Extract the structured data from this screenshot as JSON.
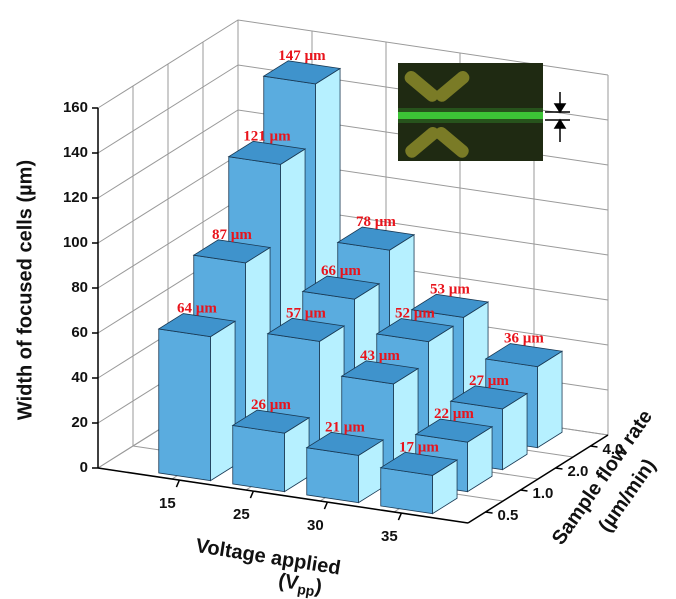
{
  "chart_data": {
    "type": "bar3d",
    "y_label": "Width of focused cells (µm)",
    "x_label": "Voltage applied",
    "x_label_unit": [
      "(V",
      "pp",
      ")"
    ],
    "z_label": [
      "Sample flow rate",
      "(µm/min)"
    ],
    "categories": [
      "15",
      "25",
      "30",
      "35"
    ],
    "series": [
      {
        "name": "0.5",
        "color": "#5aacdf",
        "values": [
          64,
          26,
          21,
          17
        ],
        "value_labels": [
          "64 µm",
          "26 µm",
          "21 µm",
          "17 µm"
        ]
      },
      {
        "name": "1.0",
        "color": "#5aacdf",
        "values": [
          87,
          57,
          43,
          22
        ],
        "value_labels": [
          "87 µm",
          "57 µm",
          "43 µm",
          "22 µm"
        ]
      },
      {
        "name": "2.0",
        "color": "#5aacdf",
        "values": [
          121,
          66,
          52,
          27
        ],
        "value_labels": [
          "121 µm",
          "66 µm",
          "52 µm",
          "27 µm"
        ]
      },
      {
        "name": "4.0",
        "color": "#5aacdf",
        "values": [
          147,
          78,
          53,
          36
        ],
        "value_labels": [
          "147 µm",
          "78 µm",
          "53 µm",
          "36 µm"
        ]
      }
    ],
    "side_color": "#b6f0ff",
    "top_color": "#3f93cc",
    "value_label_color": "#e8141c",
    "ylim": [
      0,
      160
    ],
    "yticks": [
      0,
      20,
      40,
      60,
      80,
      100,
      120,
      140,
      160
    ],
    "grid": true
  }
}
